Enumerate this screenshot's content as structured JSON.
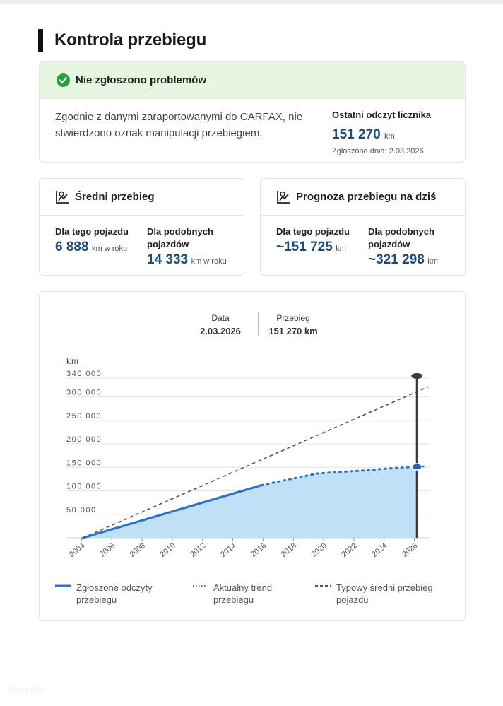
{
  "page": {
    "title": "Kontrola przebiegu"
  },
  "status": {
    "headline": "Nie zgłoszono problemów",
    "description": "Zgodnie z danymi zaraportowanymi do CARFAX, nie stwierdzono oznak manipulacji przebiegiem.",
    "odometer_label": "Ostatni odczyt licznika",
    "odometer_value": "151 270",
    "odometer_unit": "km",
    "reported_date": "Zgłoszono dnia: 2.03.2026",
    "accent_color": "#2f9e44"
  },
  "avg_mileage": {
    "title": "Średni przebieg",
    "icon": "odometer-chart-icon",
    "this_label": "Dla tego pojazdu",
    "this_value": "6 888",
    "this_unit": "km w roku",
    "similar_label": "Dla podobnych pojazdów",
    "similar_value": "14 333",
    "similar_unit": "km w roku"
  },
  "forecast": {
    "title": "Prognoza przebiegu na dziś",
    "icon": "odometer-chart-icon",
    "this_label": "Dla tego pojazdu",
    "this_value": "~151 725",
    "this_unit": "km",
    "similar_label": "Dla podobnych pojazdów",
    "similar_value": "~321 298",
    "similar_unit": "km"
  },
  "tooltip": {
    "date_label": "Data",
    "date_value": "2.03.2026",
    "mileage_label": "Przebieg",
    "mileage_value": "151 270 km"
  },
  "legend": {
    "reported": "Zgłoszone odczyty przebiegu",
    "trend": "Aktualny trend przebiegu",
    "typical": "Typowy średni przebieg pojazdu"
  },
  "chart_data": {
    "type": "line",
    "ylabel": "km",
    "ylim": [
      0,
      340000
    ],
    "xlim": [
      2003,
      2027
    ],
    "y_ticks": [
      50000,
      100000,
      150000,
      200000,
      250000,
      300000,
      340000
    ],
    "y_tick_labels": [
      "50 000",
      "100 000",
      "150 000",
      "200 000",
      "250 000",
      "300 000",
      "340 000"
    ],
    "x_ticks": [
      2004,
      2006,
      2008,
      2010,
      2012,
      2014,
      2016,
      2018,
      2020,
      2022,
      2024,
      2026
    ],
    "x_tick_labels": [
      "2004",
      "2006",
      "2008",
      "2010",
      "2012",
      "2014",
      "2016",
      "2018",
      "2020",
      "2022",
      "2024",
      "2026"
    ],
    "grid": true,
    "legend_position": "bottom",
    "marker_year": 2026.17,
    "series": [
      {
        "name": "Zgłoszone odczyty przebiegu",
        "style": "solid",
        "color": "#2f74c0",
        "x": [
          2004.1,
          2015.9
        ],
        "y": [
          0,
          112000
        ]
      },
      {
        "name": "Aktualny trend przebiegu",
        "style": "dotted",
        "color": "#2f74c0",
        "x": [
          2015.9,
          2017.8,
          2019.6,
          2021,
          2022.5,
          2024,
          2025.2,
          2026.17
        ],
        "y": [
          112000,
          125000,
          137000,
          140000,
          143000,
          147000,
          149500,
          151270
        ]
      },
      {
        "name": "Typowy średni przebieg pojazdu",
        "style": "dashed",
        "color": "#555555",
        "x": [
          2004.1,
          2026.9
        ],
        "y": [
          0,
          321298
        ]
      }
    ]
  }
}
